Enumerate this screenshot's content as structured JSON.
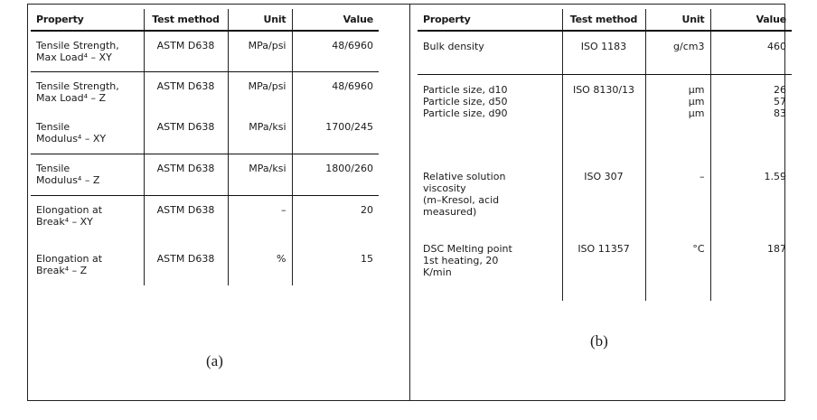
{
  "table_a": {
    "headers": {
      "property": "Property",
      "method": "Test method",
      "unit": "Unit",
      "value": "Value"
    },
    "rows": [
      {
        "property_line1": "Tensile Strength,",
        "property_line2": "Max Load⁴ – XY",
        "method": "ASTM D638",
        "unit": "MPa/psi",
        "value": "48/6960"
      },
      {
        "property_line1": "Tensile Strength,",
        "property_line2": "Max Load⁴ – Z",
        "method": "ASTM D638",
        "unit": "MPa/psi",
        "value": "48/6960"
      },
      {
        "property_line1": "Tensile",
        "property_line2": "Modulus⁴ – XY",
        "method": "ASTM D638",
        "unit": "MPa/ksi",
        "value": "1700/245"
      },
      {
        "property_line1": "Tensile",
        "property_line2": "Modulus⁴ – Z",
        "method": "ASTM D638",
        "unit": "MPa/ksi",
        "value": "1800/260"
      },
      {
        "property_line1": "Elongation at",
        "property_line2": "Break⁴ – XY",
        "method": "ASTM D638",
        "unit": "–",
        "value": "20"
      },
      {
        "property_line1": "Elongation at",
        "property_line2": "Break⁴ – Z",
        "method": "ASTM D638",
        "unit": "%",
        "value": "15"
      }
    ],
    "caption": "(a)"
  },
  "table_b": {
    "headers": {
      "property": "Property",
      "method": "Test method",
      "unit": "Unit",
      "value": "Value"
    },
    "bulk": {
      "property": "Bulk density",
      "method": "ISO 1183",
      "unit": "g/cm3",
      "value": "460"
    },
    "particle": {
      "properties": [
        "Particle size, d10",
        "Particle size, d50",
        "Particle size, d90"
      ],
      "method": "ISO 8130/13",
      "units": [
        "µm",
        "µm",
        "µm"
      ],
      "values": [
        "26",
        "57",
        "83"
      ]
    },
    "viscosity": {
      "property_lines": [
        "Relative solution",
        "viscosity",
        "(m–Kresol, acid",
        "measured)"
      ],
      "method": "ISO 307",
      "unit": "–",
      "value": "1.59"
    },
    "dsc": {
      "property_lines": [
        "DSC Melting point",
        "1st heating, 20",
        "K/min"
      ],
      "method": "ISO 11357",
      "unit": "°C",
      "value": "187"
    },
    "caption": "(b)"
  }
}
